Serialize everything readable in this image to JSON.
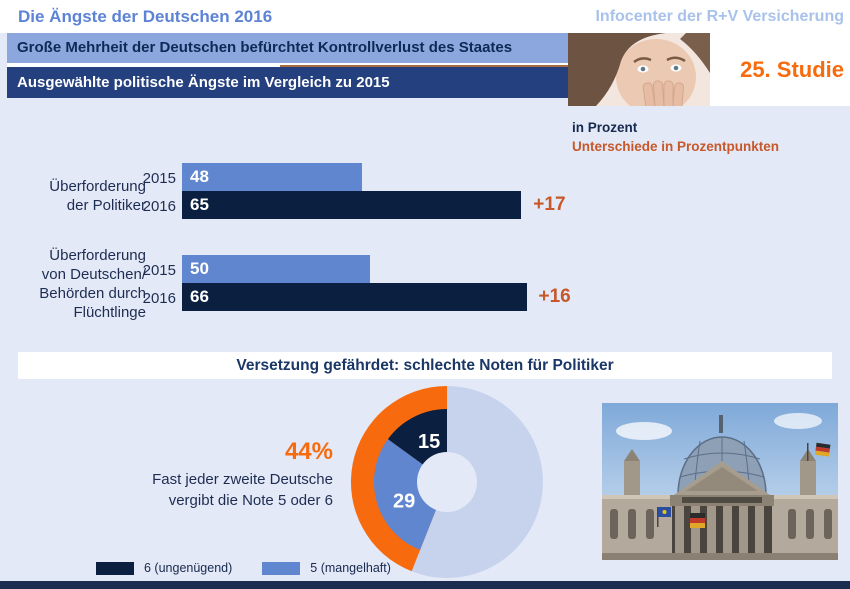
{
  "header": {
    "title": "Die Ängste der Deutschen 2016",
    "brand": "Infocenter der R+V Versicherung"
  },
  "banners": {
    "headline": "Große Mehrheit der Deutschen befürchtet Kontrollverlust des Staates",
    "subheadline": "Ausgewählte politische Ängste im Vergleich zu 2015",
    "study_badge": "25. Studie"
  },
  "notes": {
    "unit": "in Prozent",
    "difference": "Unterschiede in Prozentpunkten"
  },
  "chart_data": [
    {
      "type": "bar",
      "title": "Ausgewählte politische Ängste im Vergleich zu 2015",
      "categories": [
        "Überforderung\nder Politiker",
        "Überforderung\nvon Deutschen/\nBehörden durch\nFlüchtlinge"
      ],
      "series": [
        {
          "name": "2015",
          "values": [
            48,
            50
          ]
        },
        {
          "name": "2016",
          "values": [
            65,
            66
          ]
        }
      ],
      "deltas": [
        "+17",
        "+16"
      ],
      "unit": "Prozent",
      "xlim": [
        0,
        100
      ],
      "legend_position": "none",
      "grid": false
    },
    {
      "type": "pie",
      "title": "Versetzung gefährdet: schlechte Noten für Politiker",
      "slices": [
        {
          "label": "6 (ungenügend)",
          "value": 15
        },
        {
          "label": "5 (mangelhaft)",
          "value": 29
        },
        {
          "label": "",
          "value": 56
        }
      ],
      "highlight_total": "44%",
      "annotation": "Fast jeder zweite Deutsche\nvergibt die Note 5 oder 6",
      "legend_position": "bottom"
    }
  ],
  "colors": {
    "page_bg": "#e4e9f7",
    "banner_light": "#8ca7dd",
    "banner_dark": "#24407e",
    "bar_2015": "#5f86cf",
    "bar_2016": "#0b2040",
    "accent_orange": "#f76b0e",
    "diff_orange": "#c7582a",
    "pie_rest": "#c7d3ed",
    "footer": "#1b2c50"
  }
}
